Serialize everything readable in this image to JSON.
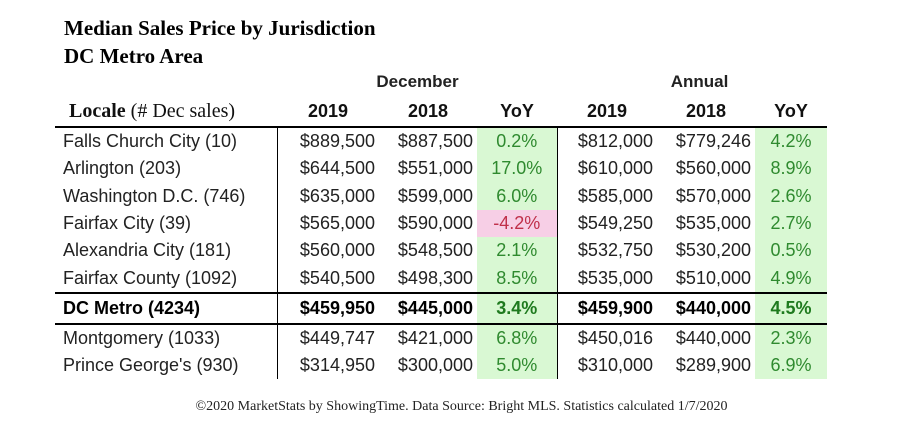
{
  "title": "Median Sales Price by Jurisdiction",
  "subtitle": "DC Metro Area",
  "group_headers": {
    "december": "December",
    "annual": "Annual"
  },
  "columns": {
    "locale": "Locale",
    "locale_sub": "(# Dec sales)",
    "dec_2019": "2019",
    "dec_2018": "2018",
    "dec_yoy": "YoY",
    "ann_2019": "2019",
    "ann_2018": "2018",
    "ann_yoy": "YoY"
  },
  "rows": [
    {
      "locale": "Falls Church City (10)",
      "dec_2019": "$889,500",
      "dec_2018": "$887,500",
      "dec_yoy": "0.2%",
      "ann_2019": "$812,000",
      "ann_2018": "$779,246",
      "ann_yoy": "4.2%"
    },
    {
      "locale": "Arlington (203)",
      "dec_2019": "$644,500",
      "dec_2018": "$551,000",
      "dec_yoy": "17.0%",
      "ann_2019": "$610,000",
      "ann_2018": "$560,000",
      "ann_yoy": "8.9%"
    },
    {
      "locale": "Washington D.C. (746)",
      "dec_2019": "$635,000",
      "dec_2018": "$599,000",
      "dec_yoy": "6.0%",
      "ann_2019": "$585,000",
      "ann_2018": "$570,000",
      "ann_yoy": "2.6%"
    },
    {
      "locale": "Fairfax City (39)",
      "dec_2019": "$565,000",
      "dec_2018": "$590,000",
      "dec_yoy": "-4.2%",
      "ann_2019": "$549,250",
      "ann_2018": "$535,000",
      "ann_yoy": "2.7%"
    },
    {
      "locale": "Alexandria City (181)",
      "dec_2019": "$560,000",
      "dec_2018": "$548,500",
      "dec_yoy": "2.1%",
      "ann_2019": "$532,750",
      "ann_2018": "$530,200",
      "ann_yoy": "0.5%"
    },
    {
      "locale": "Fairfax County (1092)",
      "dec_2019": "$540,500",
      "dec_2018": "$498,300",
      "dec_yoy": "8.5%",
      "ann_2019": "$535,000",
      "ann_2018": "$510,000",
      "ann_yoy": "4.9%"
    },
    {
      "locale": "DC Metro (4234)",
      "dec_2019": "$459,950",
      "dec_2018": "$445,000",
      "dec_yoy": "3.4%",
      "ann_2019": "$459,900",
      "ann_2018": "$440,000",
      "ann_yoy": "4.5%"
    },
    {
      "locale": "Montgomery (1033)",
      "dec_2019": "$449,747",
      "dec_2018": "$421,000",
      "dec_yoy": "6.8%",
      "ann_2019": "$450,016",
      "ann_2018": "$440,000",
      "ann_yoy": "2.3%"
    },
    {
      "locale": "Prince George's (930)",
      "dec_2019": "$314,950",
      "dec_2018": "$300,000",
      "dec_yoy": "5.0%",
      "ann_2019": "$310,000",
      "ann_2018": "$289,900",
      "ann_yoy": "6.9%"
    }
  ],
  "colors": {
    "positive_text": "#2f8a2f",
    "positive_bg": "#d9f8d3",
    "negative_text": "#c0304a",
    "negative_bg": "#f7cfe6"
  },
  "footer": "©2020 MarketStats by ShowingTime. Data Source: Bright MLS. Statistics calculated 1/7/2020"
}
